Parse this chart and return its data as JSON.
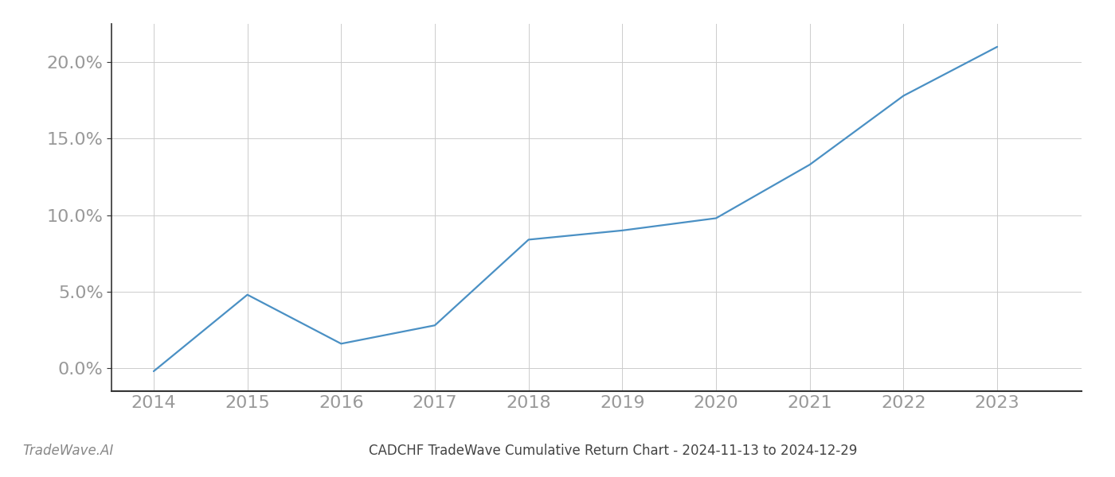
{
  "years": [
    2014,
    2015,
    2016,
    2017,
    2018,
    2019,
    2020,
    2021,
    2022,
    2023
  ],
  "values": [
    -0.2,
    4.8,
    1.6,
    2.8,
    8.4,
    9.0,
    9.8,
    13.3,
    17.8,
    21.0
  ],
  "line_color": "#4a90c4",
  "line_width": 1.6,
  "title": "CADCHF TradeWave Cumulative Return Chart - 2024-11-13 to 2024-12-29",
  "watermark": "TradeWave.AI",
  "ylim": [
    -1.5,
    22.5
  ],
  "yticks": [
    0.0,
    5.0,
    10.0,
    15.0,
    20.0
  ],
  "xlim_left": 2013.55,
  "xlim_right": 2023.9,
  "background_color": "#ffffff",
  "grid_color": "#cccccc",
  "title_fontsize": 12,
  "watermark_fontsize": 12,
  "tick_fontsize": 16,
  "xtick_color": "#999999",
  "ytick_color": "#999999",
  "spine_color": "#333333"
}
